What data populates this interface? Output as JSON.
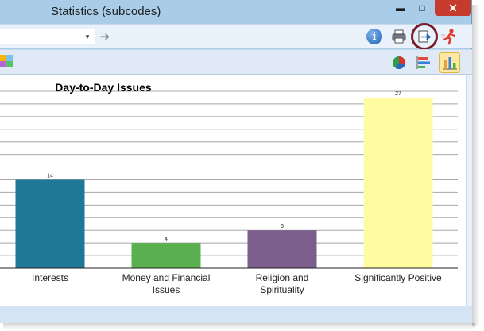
{
  "window": {
    "title": "Statistics (subcodes)",
    "minimize_glyph": "▬",
    "maximize_glyph": "□",
    "close_glyph": "✕"
  },
  "toolbar": {
    "combo_value": "",
    "combo_arrow_glyph": "▾",
    "go_arrow_glyph": "➔",
    "info_glyph": "i",
    "icons": [
      "info-icon",
      "printer-icon",
      "export-icon",
      "run-person-icon"
    ],
    "export_highlight_color": "#7a1d2a"
  },
  "chart_toolbar": {
    "icons": [
      "color-palette-icon",
      "pie-chart-icon",
      "horizontal-bar-chart-icon",
      "vertical-bar-chart-icon"
    ],
    "selected": "vertical-bar-chart"
  },
  "chart_data": {
    "type": "bar",
    "title": "Day-to-Day Issues",
    "categories": [
      [
        "Interests"
      ],
      [
        "Money and Financial",
        "Issues"
      ],
      [
        "Religion and",
        "Spirituality"
      ],
      [
        "Significantly Positive"
      ]
    ],
    "values": [
      14,
      4,
      6,
      27
    ],
    "colors": [
      "#1f7896",
      "#5aaf4e",
      "#7b5e8c",
      "#fefca0"
    ],
    "ylim": [
      0,
      29
    ],
    "grid": true,
    "gridline_step": 2
  }
}
